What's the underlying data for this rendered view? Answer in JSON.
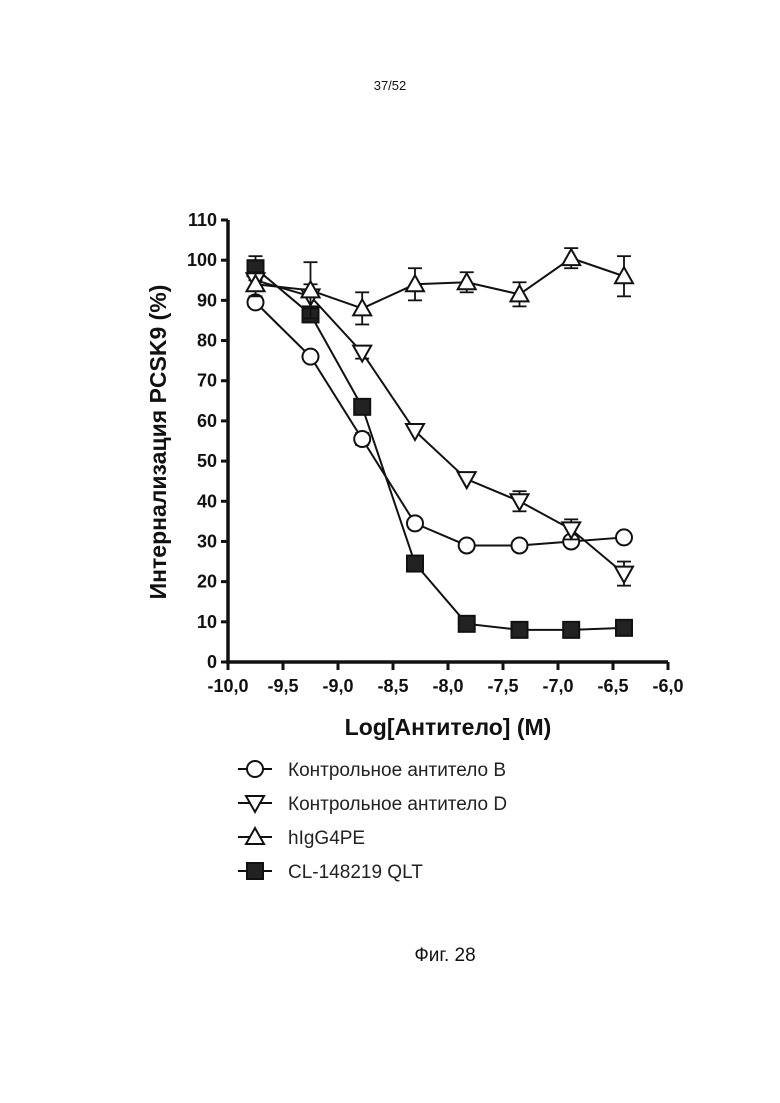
{
  "page_number": "37/52",
  "figure_caption": "Фиг. 28",
  "chart_data": {
    "type": "line",
    "xlabel": "Log[Антитело] (M)",
    "ylabel": "Интернализация PCSK9 (%)",
    "xlim": [
      -10.0,
      -6.0
    ],
    "ylim": [
      0,
      110
    ],
    "x_ticks": [
      "-10,0",
      "-9,5",
      "-9,0",
      "-8,5",
      "-8,0",
      "-7,5",
      "-7,0",
      "-6,5",
      "-6,0"
    ],
    "x_tick_values": [
      -10.0,
      -9.5,
      -9.0,
      -8.5,
      -8.0,
      -7.5,
      -7.0,
      -6.5,
      -6.0
    ],
    "y_ticks": [
      "0",
      "10",
      "20",
      "30",
      "40",
      "50",
      "60",
      "70",
      "80",
      "90",
      "100",
      "110"
    ],
    "y_tick_values": [
      0,
      10,
      20,
      30,
      40,
      50,
      60,
      70,
      80,
      90,
      100,
      110
    ],
    "grid": false,
    "legend_position": "bottom",
    "x": [
      -9.75,
      -9.25,
      -8.78,
      -8.3,
      -7.83,
      -7.35,
      -6.88,
      -6.4
    ],
    "series": [
      {
        "name": "Контрольное антитело B",
        "marker": "circle-open",
        "values": [
          89.5,
          76,
          55.5,
          34.5,
          29,
          29,
          30,
          31
        ],
        "errors": [
          1,
          0,
          1.5,
          0,
          0,
          0,
          1,
          0
        ]
      },
      {
        "name": "Контрольное антитело D",
        "marker": "triangle-down-open",
        "values": [
          95,
          91,
          77,
          57.5,
          45.5,
          40,
          33,
          22
        ],
        "errors": [
          2,
          3,
          1.5,
          0,
          0,
          2.5,
          2.5,
          3
        ]
      },
      {
        "name": "hIgG4PE",
        "marker": "triangle-up-open",
        "values": [
          94,
          92.5,
          88,
          94,
          94.5,
          91.5,
          100.5,
          96
        ],
        "errors": [
          3,
          7,
          4,
          4,
          2.5,
          3,
          2.5,
          5
        ]
      },
      {
        "name": "CL-148219 QLT",
        "marker": "square-filled",
        "values": [
          98,
          86.5,
          63.5,
          24.5,
          9.5,
          8,
          8,
          8.5
        ],
        "errors": [
          3,
          1,
          0,
          0,
          0,
          0,
          0,
          0
        ]
      }
    ]
  }
}
